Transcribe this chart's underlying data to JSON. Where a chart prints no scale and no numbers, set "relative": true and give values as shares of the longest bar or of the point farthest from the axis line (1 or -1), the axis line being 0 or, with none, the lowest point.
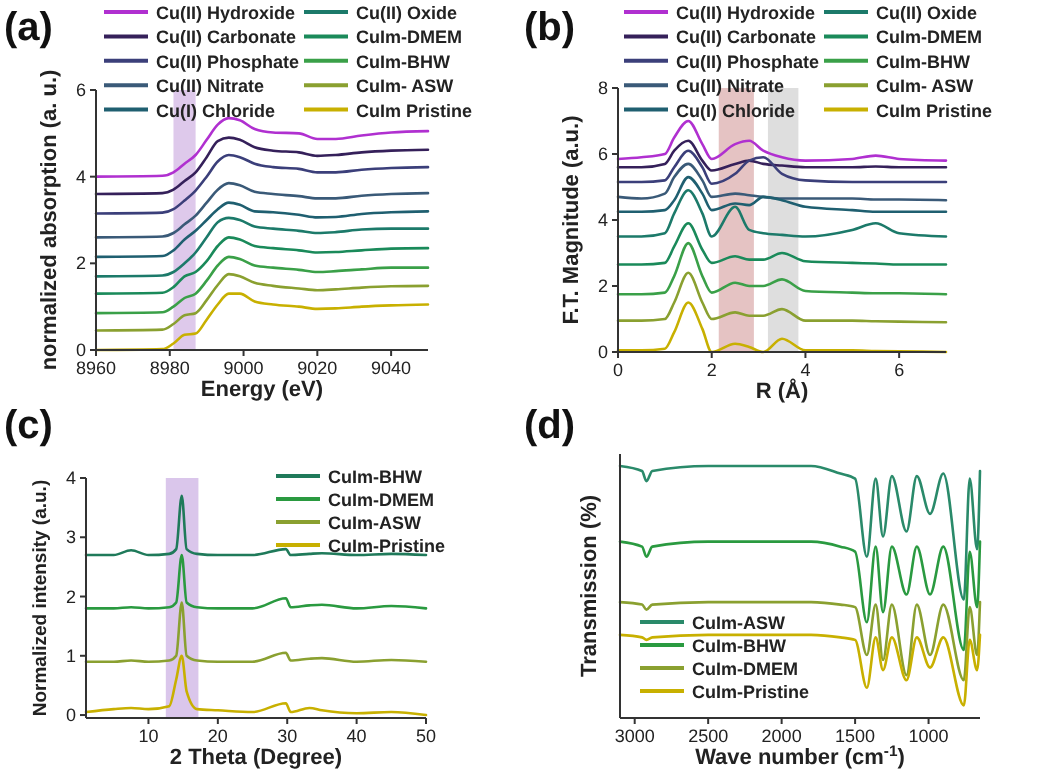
{
  "chart_data": [
    {
      "type": "line",
      "title": "(a)",
      "xlabel": "Energy (eV)",
      "ylabel": "normalized absorption (a. u.)",
      "xlim": [
        8960,
        9050
      ],
      "xticks": [
        8960,
        8980,
        9000,
        9020,
        9040
      ],
      "ylim": [
        0,
        6
      ],
      "yticks": [
        0,
        2,
        4,
        6
      ],
      "legend": "top",
      "bands": [
        {
          "axis": "x",
          "from": 8981,
          "to": 8987,
          "color": "#d8c0e8"
        }
      ],
      "x": [
        8960,
        8978,
        8981,
        8984,
        8987,
        8990,
        8993,
        8996,
        8999,
        9003,
        9008,
        9015,
        9020,
        9025,
        9032,
        9040,
        9050
      ],
      "series": [
        {
          "name": "Cu(II) Hydroxide",
          "color": "#b030d0",
          "values": [
            4.0,
            4.02,
            4.1,
            4.3,
            4.5,
            4.85,
            5.2,
            5.35,
            5.3,
            5.1,
            5.02,
            5.0,
            4.87,
            4.87,
            4.95,
            5.02,
            5.05
          ]
        },
        {
          "name": "Cu(II) Carbonate",
          "color": "#35205a",
          "values": [
            3.6,
            3.62,
            3.7,
            3.9,
            4.1,
            4.45,
            4.82,
            4.9,
            4.85,
            4.68,
            4.6,
            4.56,
            4.48,
            4.5,
            4.56,
            4.6,
            4.62
          ]
        },
        {
          "name": "Cu(II) Phosphate",
          "color": "#3b3f7a",
          "values": [
            3.15,
            3.17,
            3.25,
            3.45,
            3.68,
            4.0,
            4.35,
            4.5,
            4.45,
            4.3,
            4.22,
            4.18,
            4.1,
            4.1,
            4.16,
            4.2,
            4.22
          ]
        },
        {
          "name": "Cu(II) Nitrate",
          "color": "#3a5a78",
          "values": [
            2.6,
            2.62,
            2.7,
            2.9,
            3.1,
            3.4,
            3.7,
            3.85,
            3.8,
            3.65,
            3.6,
            3.55,
            3.5,
            3.5,
            3.56,
            3.6,
            3.62
          ]
        },
        {
          "name": "Cu(I) Chloride",
          "color": "#1f5f70",
          "values": [
            2.15,
            2.17,
            2.3,
            2.55,
            2.75,
            3.0,
            3.25,
            3.4,
            3.35,
            3.2,
            3.18,
            3.12,
            3.06,
            3.07,
            3.14,
            3.18,
            3.2
          ]
        },
        {
          "name": "Cu(II) Oxide",
          "color": "#1c7a6a",
          "values": [
            1.7,
            1.72,
            1.8,
            2.0,
            2.25,
            2.6,
            2.95,
            3.05,
            3.0,
            2.85,
            2.8,
            2.75,
            2.7,
            2.72,
            2.78,
            2.8,
            2.8
          ]
        },
        {
          "name": "CuIm-DMEM",
          "color": "#1a8a5a",
          "values": [
            1.3,
            1.32,
            1.45,
            1.7,
            1.8,
            2.05,
            2.4,
            2.6,
            2.55,
            2.4,
            2.35,
            2.3,
            2.25,
            2.26,
            2.3,
            2.34,
            2.35
          ]
        },
        {
          "name": "CuIm-BHW",
          "color": "#3aa048",
          "values": [
            0.85,
            0.87,
            1.0,
            1.2,
            1.3,
            1.6,
            1.95,
            2.15,
            2.1,
            1.95,
            1.9,
            1.85,
            1.8,
            1.82,
            1.86,
            1.9,
            1.9
          ]
        },
        {
          "name": "CuIm- ASW",
          "color": "#8aa030",
          "values": [
            0.45,
            0.47,
            0.6,
            0.8,
            0.85,
            1.15,
            1.5,
            1.75,
            1.7,
            1.55,
            1.48,
            1.42,
            1.38,
            1.4,
            1.44,
            1.47,
            1.48
          ]
        },
        {
          "name": "CuIm Pristine",
          "color": "#c8b000",
          "values": [
            0,
            0.02,
            0.15,
            0.35,
            0.38,
            0.7,
            1.05,
            1.3,
            1.3,
            1.12,
            1.05,
            1.0,
            0.95,
            0.96,
            1.0,
            1.03,
            1.05
          ]
        }
      ]
    },
    {
      "type": "line",
      "title": "(b)",
      "xlabel": "R (Å)",
      "ylabel": "F.T. Magnitude (a.u.)",
      "xlim": [
        0,
        7
      ],
      "xticks": [
        0,
        2,
        4,
        6
      ],
      "ylim": [
        0,
        8
      ],
      "yticks": [
        0,
        2,
        4,
        6,
        8
      ],
      "legend": "top",
      "bands": [
        {
          "axis": "x",
          "from": 2.15,
          "to": 2.9,
          "color": "#e0b8b8"
        },
        {
          "axis": "x",
          "from": 3.2,
          "to": 3.85,
          "color": "#d8d8d8"
        }
      ],
      "x": [
        0,
        0.5,
        1,
        1.2,
        1.5,
        1.8,
        2,
        2.5,
        2.8,
        3.1,
        3.5,
        4,
        5,
        5.5,
        6,
        7
      ],
      "series": [
        {
          "name": "Cu(II) Hydroxide",
          "color": "#b030d0",
          "values": [
            5.85,
            5.9,
            6.0,
            6.5,
            7.0,
            6.3,
            5.85,
            6.3,
            6.4,
            6.1,
            5.9,
            5.8,
            5.85,
            5.95,
            5.85,
            5.8
          ]
        },
        {
          "name": "Cu(II) Carbonate",
          "color": "#35205a",
          "values": [
            5.6,
            5.6,
            5.7,
            6.1,
            6.4,
            5.8,
            5.5,
            5.7,
            5.8,
            5.7,
            5.65,
            5.6,
            5.6,
            5.62,
            5.6,
            5.6
          ]
        },
        {
          "name": "Cu(II) Phosphate",
          "color": "#3b3f7a",
          "values": [
            5.15,
            5.15,
            5.2,
            5.6,
            6.1,
            5.6,
            5.1,
            5.4,
            5.8,
            5.9,
            5.4,
            5.2,
            5.15,
            5.15,
            5.15,
            5.15
          ]
        },
        {
          "name": "Cu(II) Nitrate",
          "color": "#3a5a78",
          "values": [
            4.7,
            4.65,
            4.8,
            5.3,
            5.7,
            5.2,
            4.7,
            4.8,
            4.75,
            4.7,
            4.65,
            4.65,
            4.65,
            4.62,
            4.62,
            4.6
          ]
        },
        {
          "name": "Cu(I) Chloride",
          "color": "#1f5f70",
          "values": [
            4.25,
            4.25,
            4.3,
            4.6,
            5.3,
            4.8,
            4.3,
            4.5,
            4.45,
            4.7,
            4.6,
            4.4,
            4.3,
            4.25,
            4.25,
            4.25
          ]
        },
        {
          "name": "Cu(II) Oxide",
          "color": "#1c7a6a",
          "values": [
            3.5,
            3.5,
            3.6,
            4.2,
            4.9,
            4.2,
            3.5,
            4.4,
            3.7,
            3.6,
            3.55,
            3.5,
            3.7,
            3.9,
            3.6,
            3.5
          ]
        },
        {
          "name": "CuIm-DMEM",
          "color": "#1a8a5a",
          "values": [
            2.65,
            2.65,
            2.7,
            3.2,
            3.9,
            3.1,
            2.7,
            2.9,
            2.8,
            2.8,
            3.0,
            2.75,
            2.7,
            2.68,
            2.65,
            2.65
          ]
        },
        {
          "name": "CuIm-BHW",
          "color": "#3aa048",
          "values": [
            1.75,
            1.75,
            1.8,
            2.3,
            3.3,
            2.3,
            1.8,
            2.1,
            2.0,
            2.0,
            2.2,
            1.85,
            1.8,
            1.78,
            1.78,
            1.75
          ]
        },
        {
          "name": "CuIm- ASW",
          "color": "#8aa030",
          "values": [
            0.95,
            0.95,
            1.0,
            1.5,
            2.4,
            1.5,
            1.0,
            1.2,
            1.1,
            1.1,
            1.3,
            0.95,
            0.95,
            0.93,
            0.92,
            0.9
          ]
        },
        {
          "name": "CuIm Pristine",
          "color": "#c8b000",
          "values": [
            0.05,
            0.05,
            0.1,
            0.6,
            1.5,
            0.7,
            0.0,
            0.25,
            0.15,
            0.0,
            0.4,
            0.05,
            0.05,
            0.03,
            0.02,
            0.0
          ]
        }
      ]
    },
    {
      "type": "line",
      "title": "(c)",
      "xlabel": "2 Theta (Degree)",
      "ylabel": "Normalized intensity (a.u.)",
      "xlim": [
        1,
        50
      ],
      "xticks": [
        10,
        20,
        30,
        40,
        50
      ],
      "ylim": [
        -0.05,
        4
      ],
      "yticks": [
        0,
        1,
        2,
        3,
        4
      ],
      "legend": "top right",
      "bands": [
        {
          "axis": "x",
          "from": 12.5,
          "to": 17.2,
          "color": "#d4bce8"
        }
      ],
      "x": [
        1,
        5,
        7.5,
        10,
        13,
        14,
        14.8,
        15.5,
        17,
        20,
        25,
        29.8,
        30.5,
        33.2,
        35,
        40,
        45,
        50
      ],
      "series": [
        {
          "name": "CuIm-BHW",
          "color": "#1f7a5a",
          "values": [
            2.7,
            2.7,
            2.78,
            2.7,
            2.72,
            2.8,
            3.7,
            2.8,
            2.72,
            2.7,
            2.7,
            2.8,
            2.7,
            2.72,
            2.73,
            2.7,
            2.72,
            2.7
          ]
        },
        {
          "name": "CuIm-DMEM",
          "color": "#2a9a40",
          "values": [
            1.8,
            1.8,
            1.82,
            1.8,
            1.82,
            1.9,
            2.7,
            1.9,
            1.82,
            1.8,
            1.8,
            1.97,
            1.82,
            1.85,
            1.86,
            1.8,
            1.84,
            1.8
          ]
        },
        {
          "name": "CuIm-ASW",
          "color": "#8aa030",
          "values": [
            0.9,
            0.9,
            0.92,
            0.9,
            0.92,
            1.0,
            1.9,
            1.0,
            0.92,
            0.9,
            0.9,
            1.05,
            0.92,
            0.95,
            0.96,
            0.9,
            0.93,
            0.9
          ]
        },
        {
          "name": "CuIm-Pristine",
          "color": "#c8b000",
          "values": [
            0.05,
            0.1,
            0.12,
            0.1,
            0.15,
            0.6,
            1.0,
            0.4,
            0.1,
            0.08,
            0.05,
            0.2,
            0.05,
            0.12,
            0.08,
            0.03,
            0.05,
            0.0
          ]
        }
      ]
    },
    {
      "type": "line",
      "title": "(d)",
      "xlabel": "Wave number (cm$^{-1}$)",
      "ylabel": "Transmission (%)",
      "relative": true,
      "xlim": [
        3100,
        650
      ],
      "xticks": [
        3000,
        2500,
        2000,
        1500,
        1000
      ],
      "legend": "bottom left",
      "x": [
        3100,
        2950,
        2920,
        2880,
        2500,
        1800,
        1600,
        1500,
        1420,
        1360,
        1310,
        1250,
        1150,
        1080,
        990,
        900,
        760,
        720,
        670,
        650
      ],
      "series": [
        {
          "name": "CuIm-ASW",
          "color": "#2a8a6a",
          "values": [
            1.0,
            0.98,
            0.94,
            0.98,
            1.0,
            1.0,
            0.97,
            0.95,
            0.64,
            0.95,
            0.72,
            0.96,
            0.74,
            0.96,
            0.81,
            0.97,
            0.47,
            0.95,
            0.67,
            0.98
          ]
        },
        {
          "name": "CuIm-BHW",
          "color": "#2a9a40",
          "values": [
            0.7,
            0.68,
            0.64,
            0.68,
            0.7,
            0.7,
            0.68,
            0.66,
            0.38,
            0.68,
            0.42,
            0.68,
            0.49,
            0.68,
            0.49,
            0.68,
            0.27,
            0.66,
            0.44,
            0.7
          ]
        },
        {
          "name": "CuIm-DMEM",
          "color": "#8aa030",
          "values": [
            0.46,
            0.45,
            0.43,
            0.45,
            0.46,
            0.46,
            0.45,
            0.44,
            0.25,
            0.45,
            0.23,
            0.45,
            0.17,
            0.45,
            0.25,
            0.45,
            0.15,
            0.44,
            0.25,
            0.46
          ]
        },
        {
          "name": "CuIm-Pristine",
          "color": "#c8b000",
          "values": [
            0.33,
            0.32,
            0.31,
            0.32,
            0.33,
            0.33,
            0.32,
            0.31,
            0.12,
            0.32,
            0.19,
            0.32,
            0.15,
            0.32,
            0.2,
            0.32,
            0.05,
            0.31,
            0.19,
            0.33
          ]
        }
      ]
    }
  ]
}
